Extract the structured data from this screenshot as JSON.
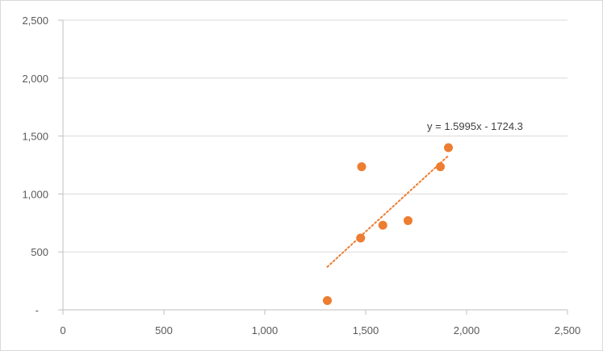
{
  "chart_data": {
    "type": "scatter",
    "title": "",
    "xlabel": "",
    "ylabel": "",
    "xlim": [
      0,
      2500
    ],
    "ylim": [
      0,
      2500
    ],
    "x_ticks": [
      0,
      500,
      1000,
      1500,
      2000,
      2500
    ],
    "x_tick_labels": [
      "0",
      "500",
      "1,000",
      "1,500",
      "2,000",
      "2,500"
    ],
    "y_ticks": [
      0,
      500,
      1000,
      1500,
      2000,
      2500
    ],
    "y_tick_labels": [
      "-",
      "500",
      "1,000",
      "1,500",
      "2,000",
      "2,500"
    ],
    "grid": "horizontal",
    "legend": "none",
    "series": [
      {
        "points": [
          {
            "x": 1310,
            "y": 80
          },
          {
            "x": 1475,
            "y": 620
          },
          {
            "x": 1480,
            "y": 1235
          },
          {
            "x": 1585,
            "y": 730
          },
          {
            "x": 1710,
            "y": 770
          },
          {
            "x": 1870,
            "y": 1235
          },
          {
            "x": 1910,
            "y": 1400
          }
        ],
        "color": "#ed7d31"
      }
    ],
    "trendline": {
      "type": "linear",
      "slope": 1.5995,
      "intercept": -1724.3,
      "x_range": [
        1310,
        1910
      ],
      "equation_label": "y = 1.5995x - 1724.3",
      "color": "#ed7d31",
      "style": "dotted"
    },
    "colors": {
      "axis": "#bfbfbf",
      "grid": "#d9d9d9"
    }
  }
}
